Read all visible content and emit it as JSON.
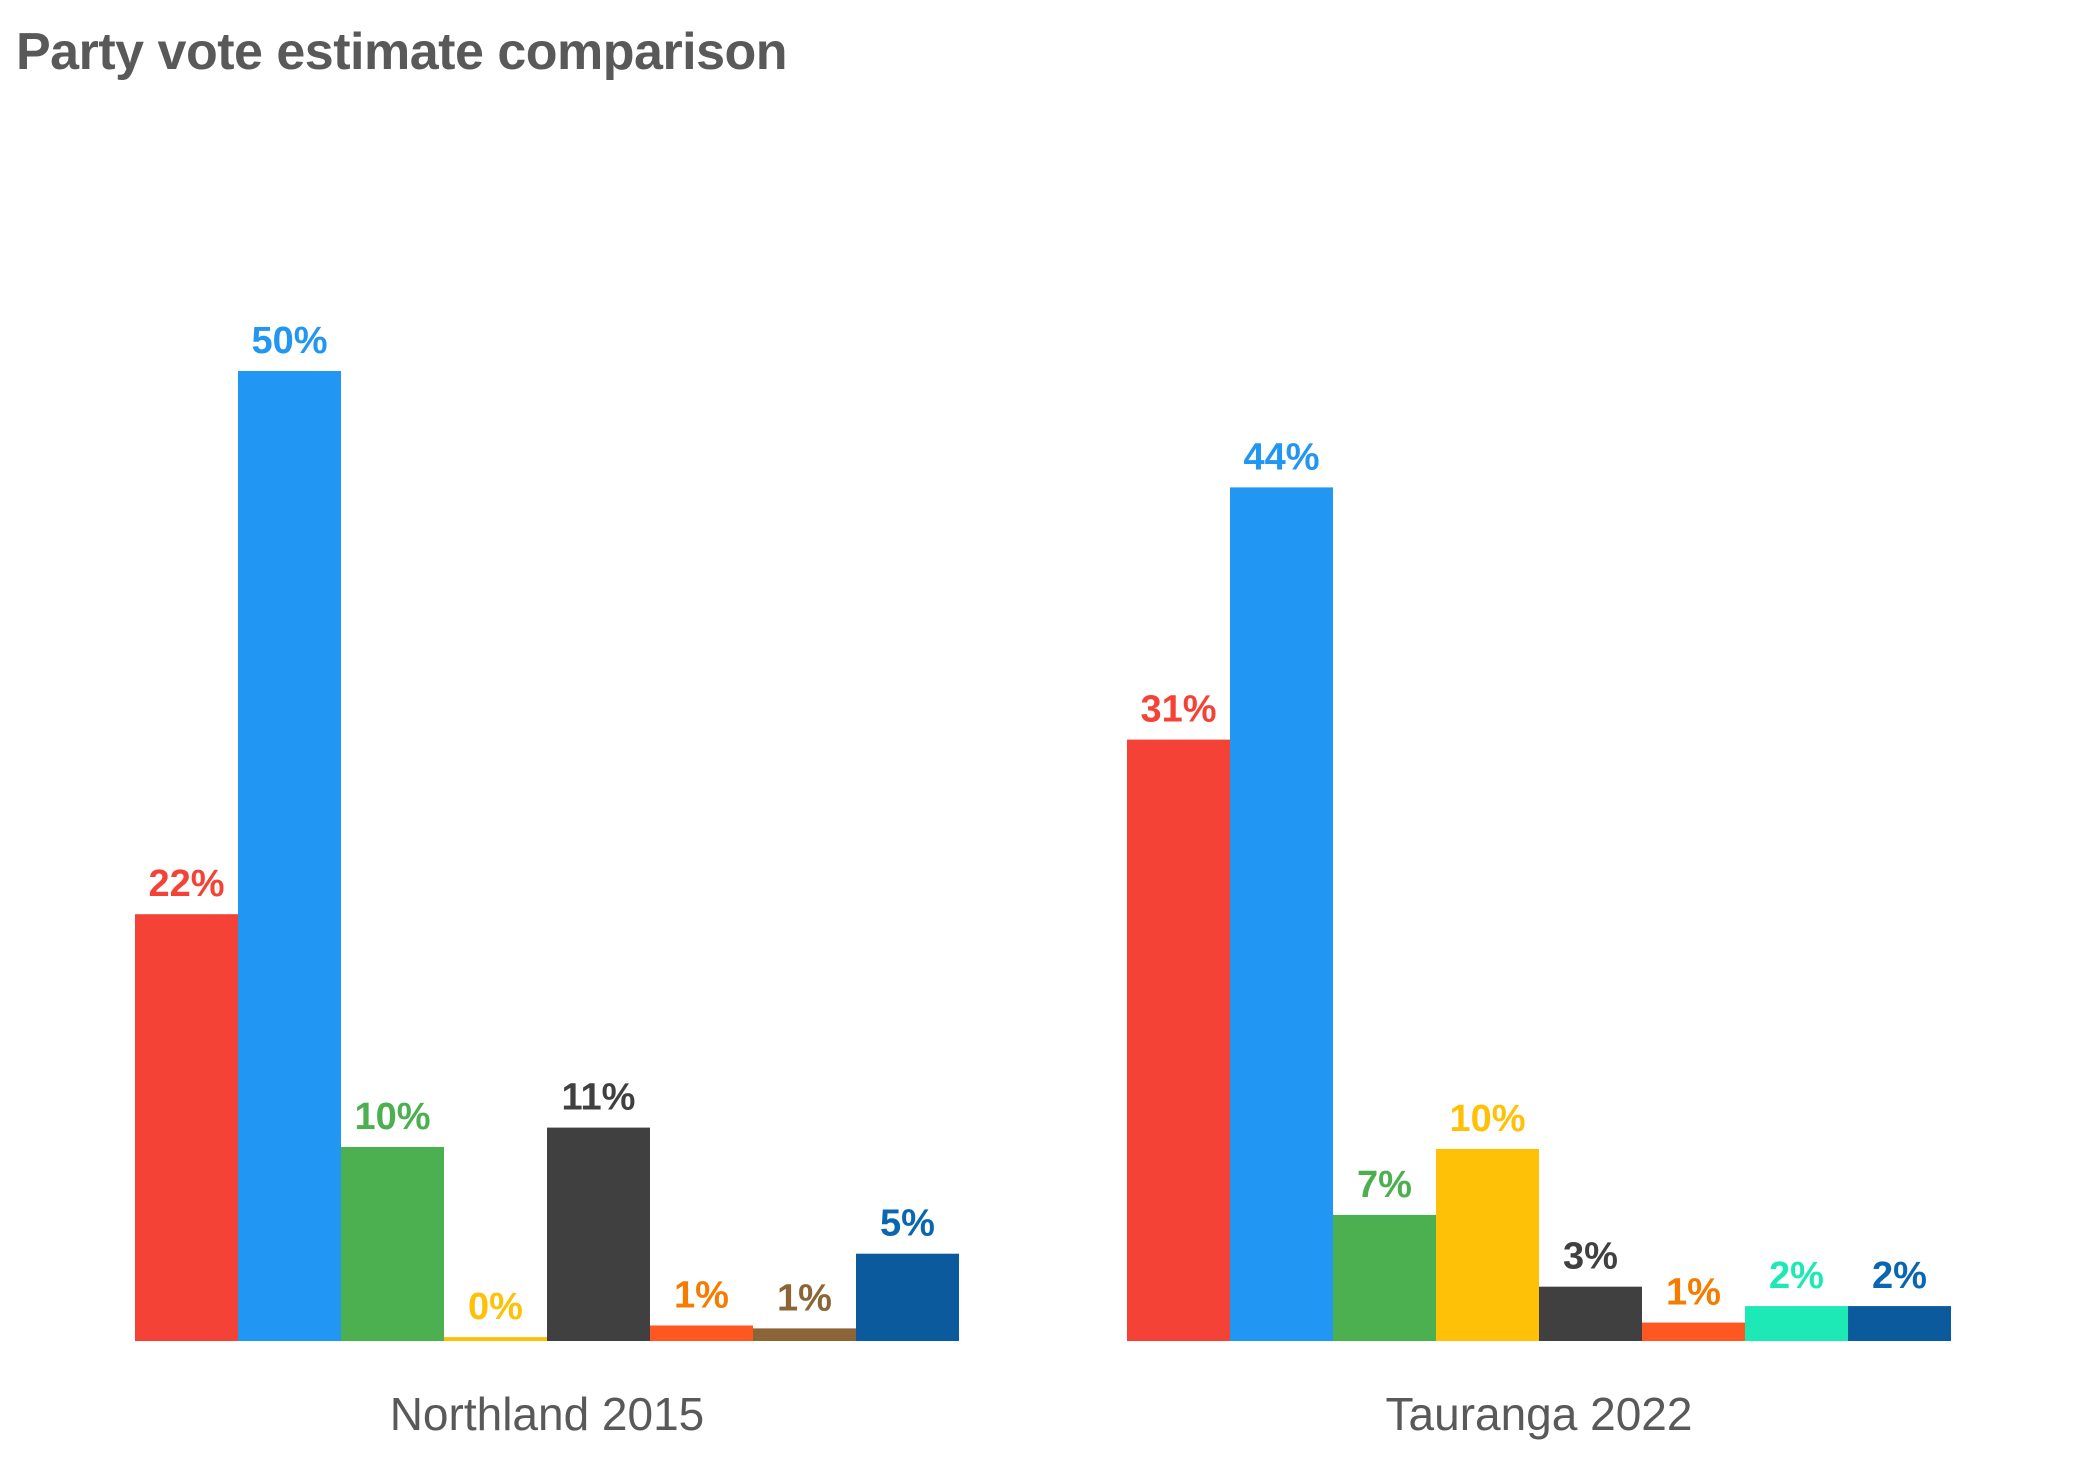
{
  "chart_data": {
    "type": "bar",
    "title": "Party vote estimate comparison",
    "xlabel": "",
    "ylabel": "",
    "ylim": [
      0,
      50
    ],
    "grid": false,
    "legend": "none",
    "groups": [
      {
        "name": "Northland 2015",
        "bars": [
          {
            "value": 22,
            "label": "22%",
            "color": "#F44336"
          },
          {
            "value": 50,
            "label": "50%",
            "color": "#2196F3"
          },
          {
            "value": 10,
            "label": "10%",
            "color": "#4CAF50"
          },
          {
            "value": 0.2,
            "label": "0%",
            "color": "#FFC107"
          },
          {
            "value": 11,
            "label": "11%",
            "color": "#404040"
          },
          {
            "value": 0.8,
            "label": "1%",
            "color": "#FF5722",
            "label_color": "#F57C00"
          },
          {
            "value": 0.65,
            "label": "1%",
            "color": "#8B6535"
          },
          {
            "value": 4.5,
            "label": "5%",
            "color": "#0B5A9E",
            "label_color": "#0A66B0"
          }
        ]
      },
      {
        "name": "Tauranga 2022",
        "bars": [
          {
            "value": 31,
            "label": "31%",
            "color": "#F44336"
          },
          {
            "value": 44,
            "label": "44%",
            "color": "#2196F3"
          },
          {
            "value": 6.5,
            "label": "7%",
            "color": "#4CAF50"
          },
          {
            "value": 9.9,
            "label": "10%",
            "color": "#FFC107"
          },
          {
            "value": 2.8,
            "label": "3%",
            "color": "#404040"
          },
          {
            "value": 0.95,
            "label": "1%",
            "color": "#FF5722",
            "label_color": "#F57C00"
          },
          {
            "value": 1.8,
            "label": "2%",
            "color": "#1DE9B6"
          },
          {
            "value": 1.8,
            "label": "2%",
            "color": "#0B5A9E",
            "label_color": "#0A66B0"
          }
        ]
      }
    ]
  }
}
